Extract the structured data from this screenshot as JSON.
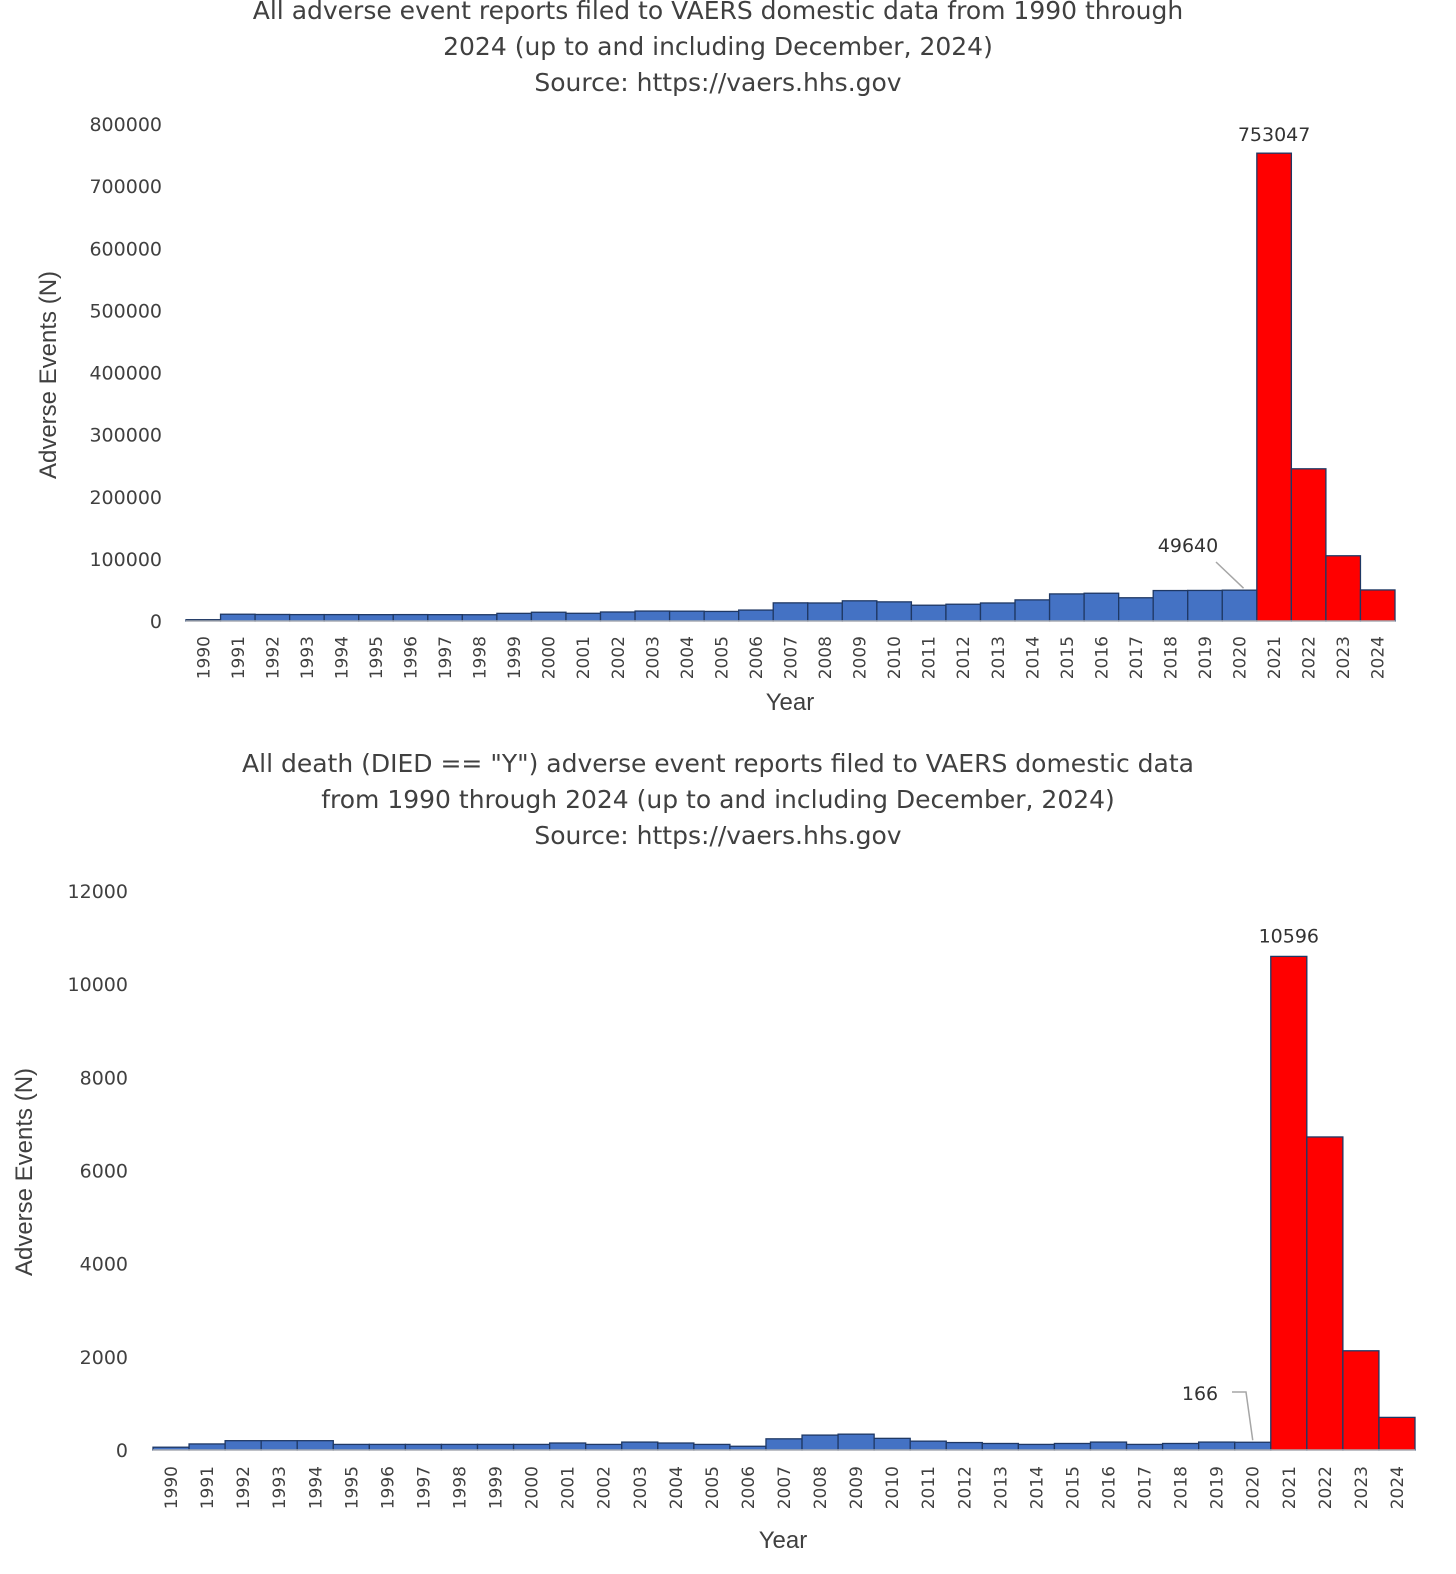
{
  "chart_data": [
    {
      "type": "bar",
      "title_lines": [
        "All adverse event reports filed to VAERS domestic data from 1990 through",
        "2024 (up to and including December, 2024)",
        "Source: https://vaers.hhs.gov"
      ],
      "xlabel": "Year",
      "ylabel": "Adverse Events (N)",
      "ylim": [
        0,
        800000
      ],
      "yticks": [
        "0",
        "100000",
        "200000",
        "300000",
        "400000",
        "500000",
        "600000",
        "700000",
        "800000"
      ],
      "categories": [
        "1990",
        "1991",
        "1992",
        "1993",
        "1994",
        "1995",
        "1996",
        "1997",
        "1998",
        "1999",
        "2000",
        "2001",
        "2002",
        "2003",
        "2004",
        "2005",
        "2006",
        "2007",
        "2008",
        "2009",
        "2010",
        "2011",
        "2012",
        "2013",
        "2014",
        "2015",
        "2016",
        "2017",
        "2018",
        "2019",
        "2020",
        "2021",
        "2022",
        "2023",
        "2024"
      ],
      "values": [
        2100,
        10900,
        10500,
        10300,
        10300,
        10200,
        10300,
        10200,
        10100,
        12300,
        14100,
        12400,
        14500,
        16000,
        15800,
        15400,
        17600,
        29200,
        29000,
        32500,
        30800,
        25400,
        27000,
        29000,
        34000,
        43600,
        44700,
        37400,
        49000,
        49200,
        49640,
        753047,
        245000,
        105000,
        50000
      ],
      "bar_colors": {
        "pre_2021": "#4472C4",
        "post_2021": "#FF0000",
        "edge": "#1F3864"
      },
      "annotations": [
        {
          "category": "2020",
          "text": "49640"
        },
        {
          "category": "2021",
          "text": "753047"
        }
      ]
    },
    {
      "type": "bar",
      "title_lines": [
        "All death (DIED == \"Y\") adverse event reports filed to VAERS domestic data",
        "from 1990 through 2024 (up to and including December, 2024)",
        "Source: https://vaers.hhs.gov"
      ],
      "xlabel": "Year",
      "ylabel": "Adverse Events (N)",
      "ylim": [
        0,
        12000
      ],
      "yticks": [
        "0",
        "2000",
        "4000",
        "6000",
        "8000",
        "10000",
        "12000"
      ],
      "categories": [
        "1990",
        "1991",
        "1992",
        "1993",
        "1994",
        "1995",
        "1996",
        "1997",
        "1998",
        "1999",
        "2000",
        "2001",
        "2002",
        "2003",
        "2004",
        "2005",
        "2006",
        "2007",
        "2008",
        "2009",
        "2010",
        "2011",
        "2012",
        "2013",
        "2014",
        "2015",
        "2016",
        "2017",
        "2018",
        "2019",
        "2020",
        "2021",
        "2022",
        "2023",
        "2024"
      ],
      "values": [
        60,
        130,
        200,
        200,
        200,
        120,
        120,
        120,
        120,
        120,
        120,
        150,
        120,
        170,
        150,
        120,
        80,
        240,
        320,
        340,
        250,
        190,
        160,
        140,
        120,
        140,
        170,
        120,
        140,
        170,
        166,
        10596,
        6720,
        2130,
        700
      ],
      "bar_colors": {
        "pre_2021": "#4472C4",
        "post_2021": "#FF0000",
        "edge": "#1F3864"
      },
      "annotations": [
        {
          "category": "2020",
          "text": "166"
        },
        {
          "category": "2021",
          "text": "10596"
        }
      ]
    }
  ]
}
